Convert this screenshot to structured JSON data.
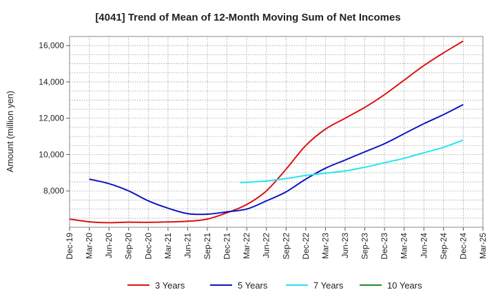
{
  "chart_data": {
    "type": "line",
    "title": "[4041]  Trend of Mean of 12-Month Moving Sum of Net Incomes",
    "ylabel": "Amount (million yen)",
    "xlabel": "",
    "x_ticks": [
      "Dec-19",
      "Mar-20",
      "Jun-20",
      "Sep-20",
      "Dec-20",
      "Mar-21",
      "Jun-21",
      "Sep-21",
      "Dec-21",
      "Mar-22",
      "Jun-22",
      "Sep-22",
      "Dec-22",
      "Mar-23",
      "Jun-23",
      "Sep-23",
      "Dec-23",
      "Mar-24",
      "Jun-24",
      "Sep-24",
      "Dec-24",
      "Mar-25"
    ],
    "y_ticks": [
      8000,
      10000,
      12000,
      14000,
      16000
    ],
    "y_tick_labels": [
      "8,000",
      "10,000",
      "12,000",
      "14,000",
      "16,000"
    ],
    "ylim": [
      6000,
      16500
    ],
    "grid": true,
    "legend_position": "bottom",
    "series": [
      {
        "name": "3 Years",
        "color": "#dd1111",
        "points": [
          [
            0,
            6450
          ],
          [
            1,
            6300
          ],
          [
            2,
            6250
          ],
          [
            3,
            6280
          ],
          [
            4,
            6270
          ],
          [
            5,
            6290
          ],
          [
            6,
            6330
          ],
          [
            7,
            6450
          ],
          [
            8,
            6800
          ],
          [
            9,
            7250
          ],
          [
            10,
            8000
          ],
          [
            11,
            9200
          ],
          [
            12,
            10500
          ],
          [
            13,
            11400
          ],
          [
            14,
            12000
          ],
          [
            15,
            12600
          ],
          [
            16,
            13300
          ],
          [
            17,
            14100
          ],
          [
            18,
            14900
          ],
          [
            19,
            15600
          ],
          [
            20,
            16250
          ]
        ]
      },
      {
        "name": "5 Years",
        "color": "#0a13bf",
        "points": [
          [
            1,
            8650
          ],
          [
            2,
            8400
          ],
          [
            3,
            8000
          ],
          [
            4,
            7450
          ],
          [
            5,
            7050
          ],
          [
            6,
            6750
          ],
          [
            7,
            6720
          ],
          [
            8,
            6850
          ],
          [
            9,
            7000
          ],
          [
            10,
            7450
          ],
          [
            11,
            7950
          ],
          [
            12,
            8650
          ],
          [
            13,
            9250
          ],
          [
            14,
            9700
          ],
          [
            15,
            10150
          ],
          [
            16,
            10600
          ],
          [
            17,
            11150
          ],
          [
            18,
            11700
          ],
          [
            19,
            12200
          ],
          [
            20,
            12750
          ]
        ]
      },
      {
        "name": "7 Years",
        "color": "#22e6ee",
        "points": [
          [
            8.67,
            8450
          ],
          [
            10,
            8550
          ],
          [
            11,
            8680
          ],
          [
            12,
            8850
          ],
          [
            13,
            8980
          ],
          [
            14,
            9100
          ],
          [
            15,
            9300
          ],
          [
            16,
            9550
          ],
          [
            17,
            9800
          ],
          [
            18,
            10100
          ],
          [
            19,
            10400
          ],
          [
            20,
            10800
          ]
        ]
      },
      {
        "name": "10 Years",
        "color": "#228b22",
        "points": []
      }
    ]
  }
}
